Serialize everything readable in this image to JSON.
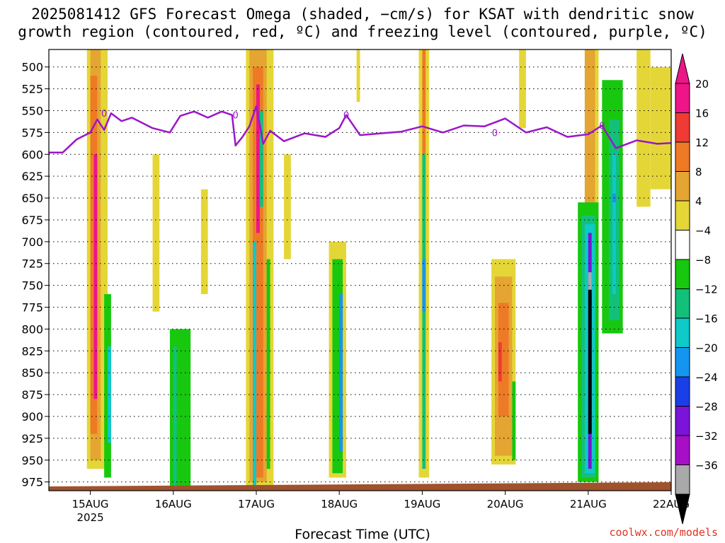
{
  "title": {
    "line1": "2025081412 GFS Forecast Omega (shaded, −cm/s) for KSAT with dendritic snow",
    "line2": "growth region (contoured, red, ºC) and freezing level (contoured, purple, ºC)"
  },
  "xaxis": {
    "title": "Forecast Time (UTC)",
    "ticks": [
      "15AUG",
      "16AUG",
      "17AUG",
      "18AUG",
      "19AUG",
      "20AUG",
      "21AUG",
      "22AUG"
    ],
    "year_label": "2025"
  },
  "credit": "coolwx.com/models",
  "chart_data": {
    "type": "heatmap",
    "title": "2025081412 GFS Forecast Omega (shaded, −cm/s) for KSAT with dendritic snow growth region (contoured, red, ºC) and freezing level (contoured, purple, ºC)",
    "xlabel": "Forecast Time (UTC)",
    "ylabel": "",
    "x_range": [
      "2025-08-14T12",
      "2025-08-22T00"
    ],
    "y_ticks": [
      500,
      525,
      550,
      575,
      600,
      625,
      650,
      675,
      700,
      725,
      750,
      775,
      800,
      825,
      850,
      875,
      900,
      925,
      950,
      975
    ],
    "y_range": [
      480,
      985
    ],
    "y_scale": "pressure (inverted)",
    "grid": true,
    "colorbar": {
      "labels": [
        "20",
        "16",
        "12",
        "8",
        "4",
        "−4",
        "−8",
        "−12",
        "−16",
        "−20",
        "−24",
        "−28",
        "−32",
        "−36"
      ],
      "bins": [
        {
          "range": ">24",
          "color": "#ee1589"
        },
        {
          "range": "20 to 24",
          "color": "#ee1589"
        },
        {
          "range": "16 to 20",
          "color": "#ee3b35"
        },
        {
          "range": "12 to 16",
          "color": "#ee7a26"
        },
        {
          "range": "8 to 12",
          "color": "#e5a532"
        },
        {
          "range": "4 to 8",
          "color": "#e5d638"
        },
        {
          "range": "-4 to 4",
          "color": "#ffffff"
        },
        {
          "range": "-8 to -4",
          "color": "#17c80f"
        },
        {
          "range": "-12 to -8",
          "color": "#13c07a"
        },
        {
          "range": "-16 to -12",
          "color": "#0fc8c8"
        },
        {
          "range": "-20 to -16",
          "color": "#1496f0"
        },
        {
          "range": "-24 to -20",
          "color": "#1b3fe6"
        },
        {
          "range": "-28 to -24",
          "color": "#7a14d8"
        },
        {
          "range": "-32 to -28",
          "color": "#a60fc6"
        },
        {
          "range": "-36 to -32",
          "color": "#a9a9a9"
        },
        {
          "range": "<-36",
          "color": "#000000"
        }
      ]
    },
    "freezing_level": {
      "color": "#9b16c8",
      "contour_label": "0",
      "points": [
        [
          "2025-08-14T12",
          598
        ],
        [
          "2025-08-14T16",
          598
        ],
        [
          "2025-08-14T20",
          583
        ],
        [
          "2025-08-15T00",
          575
        ],
        [
          "2025-08-15T02",
          560
        ],
        [
          "2025-08-15T04",
          572
        ],
        [
          "2025-08-15T06",
          553
        ],
        [
          "2025-08-15T09",
          562
        ],
        [
          "2025-08-15T12",
          558
        ],
        [
          "2025-08-15T18",
          570
        ],
        [
          "2025-08-15T23",
          575
        ],
        [
          "2025-08-16T02",
          556
        ],
        [
          "2025-08-16T06",
          551
        ],
        [
          "2025-08-16T10",
          558
        ],
        [
          "2025-08-16T14",
          551
        ],
        [
          "2025-08-16T17",
          555
        ],
        [
          "2025-08-16T18",
          590
        ],
        [
          "2025-08-16T20",
          580
        ],
        [
          "2025-08-16T22",
          568
        ],
        [
          "2025-08-17T00",
          545
        ],
        [
          "2025-08-17T02",
          588
        ],
        [
          "2025-08-17T04",
          573
        ],
        [
          "2025-08-17T08",
          585
        ],
        [
          "2025-08-17T14",
          576
        ],
        [
          "2025-08-17T20",
          580
        ],
        [
          "2025-08-18T00",
          570
        ],
        [
          "2025-08-18T02",
          555
        ],
        [
          "2025-08-18T06",
          578
        ],
        [
          "2025-08-18T12",
          576
        ],
        [
          "2025-08-18T18",
          574
        ],
        [
          "2025-08-19T00",
          568
        ],
        [
          "2025-08-19T06",
          575
        ],
        [
          "2025-08-19T12",
          567
        ],
        [
          "2025-08-19T18",
          568
        ],
        [
          "2025-08-20T00",
          559
        ],
        [
          "2025-08-20T06",
          575
        ],
        [
          "2025-08-20T12",
          569
        ],
        [
          "2025-08-20T18",
          580
        ],
        [
          "2025-08-21T00",
          577
        ],
        [
          "2025-08-21T04",
          567
        ],
        [
          "2025-08-21T08",
          593
        ],
        [
          "2025-08-21T14",
          584
        ],
        [
          "2025-08-21T20",
          588
        ],
        [
          "2025-08-22T00",
          587
        ]
      ]
    },
    "omega_features": [
      {
        "start": "2025-08-15T00",
        "end": "2025-08-15T04",
        "p_top": 480,
        "p_bottom": 960,
        "peak": "≥20 (ascent)",
        "color_peak": "#ee1589"
      },
      {
        "start": "2025-08-16T00",
        "end": "2025-08-16T06",
        "p_top": 800,
        "p_bottom": 985,
        "peak": "−4 to −8",
        "color_peak": "#17c80f"
      },
      {
        "start": "2025-08-16T22",
        "end": "2025-08-17T04",
        "p_top": 480,
        "p_bottom": 980,
        "peak": "≥20 (ascent)",
        "color_peak": "#ee1589"
      },
      {
        "start": "2025-08-17T22",
        "end": "2025-08-18T02",
        "p_top": 700,
        "p_bottom": 970,
        "peak": "−16 to −20",
        "color_peak": "#1496f0"
      },
      {
        "start": "2025-08-19T00",
        "end": "2025-08-19T02",
        "p_top": 480,
        "p_bottom": 970,
        "peak": "−16 to −20",
        "color_peak": "#1496f0"
      },
      {
        "start": "2025-08-19T20",
        "end": "2025-08-20T02",
        "p_top": 720,
        "p_bottom": 955,
        "peak": "16 to 20",
        "color_peak": "#ee3b35"
      },
      {
        "start": "2025-08-20T21",
        "end": "2025-08-21T03",
        "p_top": 655,
        "p_bottom": 975,
        "peak": "<−36",
        "color_peak": "#000000"
      },
      {
        "start": "2025-08-21T04",
        "end": "2025-08-21T10",
        "p_top": 515,
        "p_bottom": 805,
        "peak": "−16 to −20",
        "color_peak": "#1496f0"
      }
    ],
    "surface": {
      "color": "#a0522d",
      "pressure_approx": 980
    }
  }
}
